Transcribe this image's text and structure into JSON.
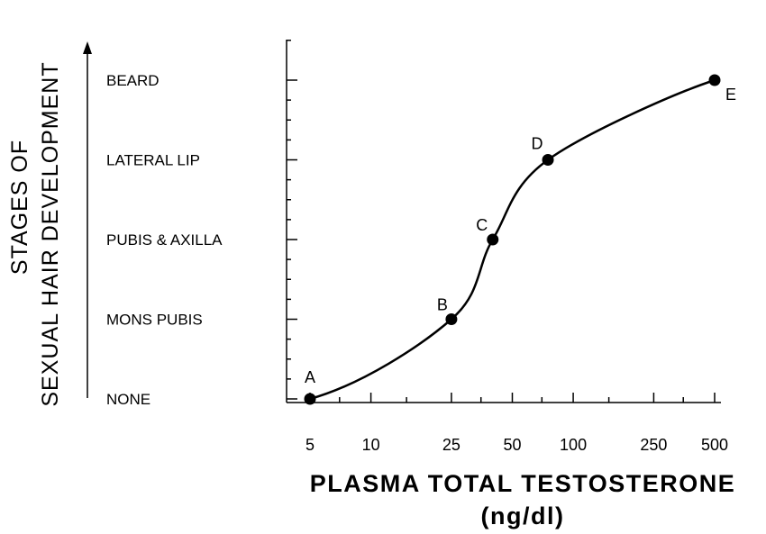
{
  "chart_data": {
    "type": "line",
    "xlabel_line1": "PLASMA TOTAL TESTOSTERONE",
    "xlabel_line2": "(ng/dl)",
    "ylabel_line1": "STAGES OF",
    "ylabel_line2": "SEXUAL HAIR DEVELOPMENT",
    "x_scale": "log",
    "xlim": [
      5,
      500
    ],
    "x_ticks": [
      5,
      10,
      25,
      50,
      100,
      250,
      500
    ],
    "x_tick_labels": [
      "5",
      "10",
      "25",
      "50",
      "100",
      "250",
      "500"
    ],
    "categories": [
      "NONE",
      "MONS PUBIS",
      "PUBIS & AXILLA",
      "LATERAL LIP",
      "BEARD"
    ],
    "points": [
      {
        "label": "A",
        "x": 5,
        "y": 0
      },
      {
        "label": "B",
        "x": 25,
        "y": 1
      },
      {
        "label": "C",
        "x": 40,
        "y": 2
      },
      {
        "label": "D",
        "x": 75,
        "y": 3
      },
      {
        "label": "E",
        "x": 500,
        "y": 4
      }
    ],
    "grid": false
  }
}
